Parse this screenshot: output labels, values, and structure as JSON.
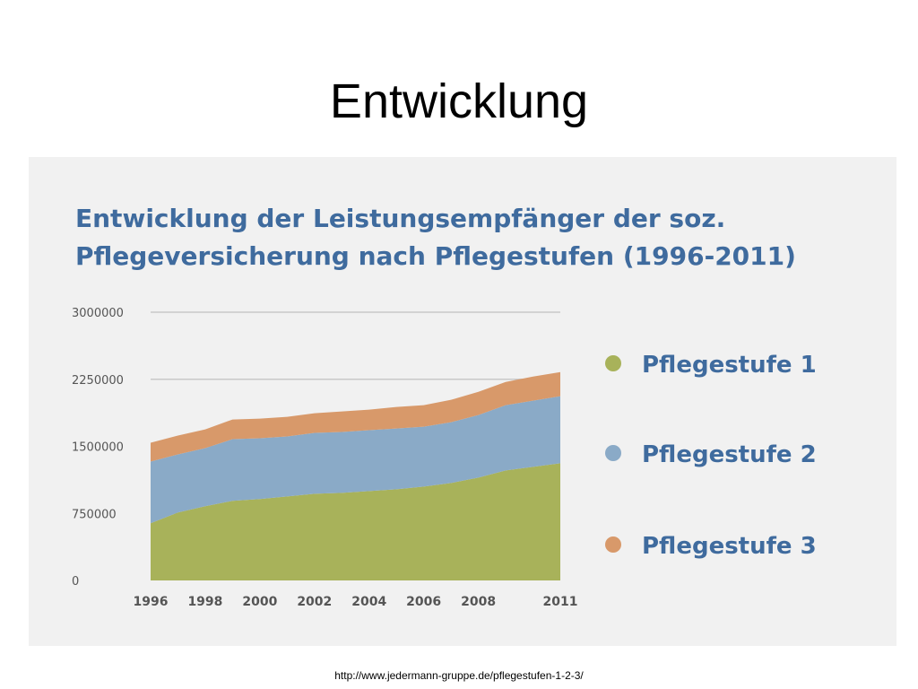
{
  "slide": {
    "title": "Entwicklung",
    "source": "http://www.jedermann-gruppe.de/pflegestufen-1-2-3/"
  },
  "chart_data": {
    "type": "area",
    "stacked": true,
    "title_lines": [
      "Entwicklung der Leistungsempfänger der soz.",
      "Pflegeversicherung nach Pflegestufen (1996-2011)"
    ],
    "xlabel": "",
    "ylabel": "",
    "x": [
      1996,
      1997,
      1998,
      1999,
      2000,
      2001,
      2002,
      2003,
      2004,
      2005,
      2006,
      2007,
      2008,
      2009,
      2010,
      2011
    ],
    "x_tick_labels": [
      "1996",
      "1998",
      "2000",
      "2002",
      "2004",
      "2006",
      "2008",
      "2011"
    ],
    "x_tick_positions": [
      1996,
      1998,
      2000,
      2002,
      2004,
      2006,
      2008,
      2011
    ],
    "ylim": [
      0,
      3000000
    ],
    "y_ticks": [
      0,
      750000,
      1500000,
      2250000,
      3000000
    ],
    "y_tick_labels": [
      "0",
      "750000",
      "1500000",
      "2250000",
      "3000000"
    ],
    "grid": "horizontal",
    "legend_position": "right",
    "series": [
      {
        "name": "Pflegestufe 1",
        "color": "#a8b25a",
        "values": [
          640000,
          760000,
          830000,
          890000,
          910000,
          940000,
          970000,
          980000,
          1000000,
          1020000,
          1050000,
          1090000,
          1150000,
          1230000,
          1270000,
          1310000
        ]
      },
      {
        "name": "Pflegestufe 2",
        "color": "#8aaac7",
        "values": [
          690000,
          650000,
          650000,
          690000,
          680000,
          670000,
          680000,
          680000,
          680000,
          680000,
          670000,
          680000,
          700000,
          730000,
          740000,
          750000
        ]
      },
      {
        "name": "Pflegestufe 3",
        "color": "#d8996a",
        "values": [
          210000,
          210000,
          210000,
          220000,
          220000,
          220000,
          220000,
          230000,
          230000,
          240000,
          240000,
          250000,
          260000,
          260000,
          270000,
          270000
        ]
      }
    ]
  }
}
